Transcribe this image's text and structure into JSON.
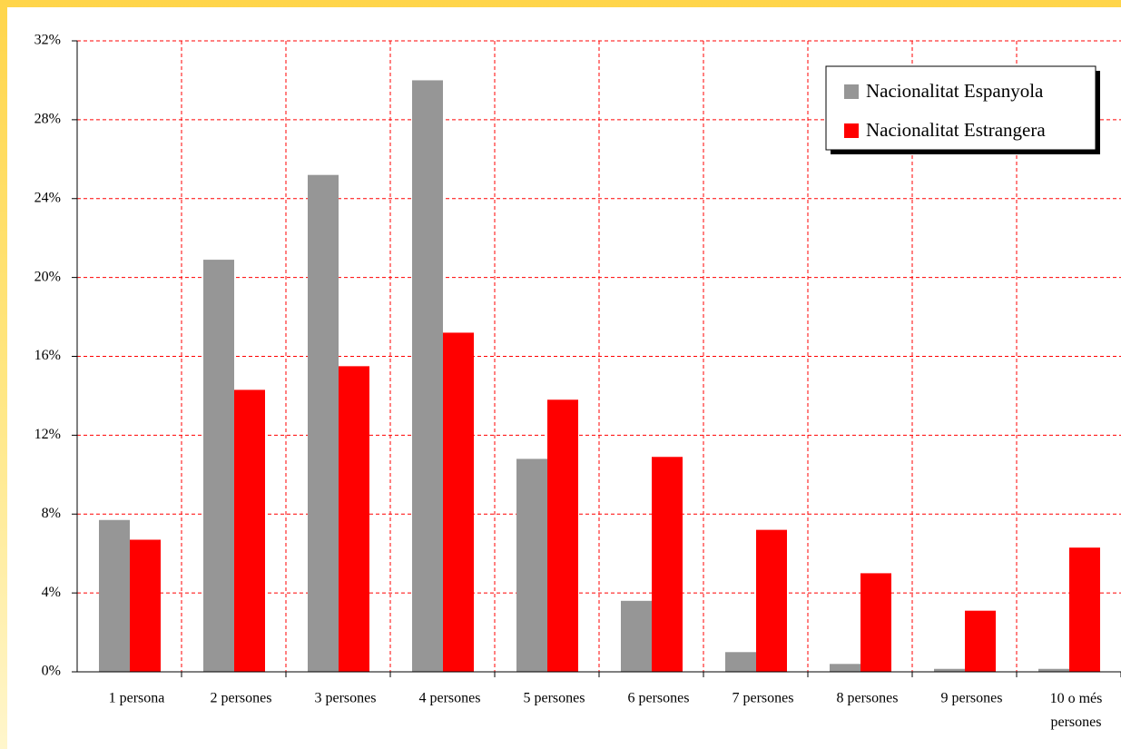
{
  "chart_data": {
    "type": "bar",
    "categories": [
      "1 persona",
      "2 persones",
      "3 persones",
      "4 persones",
      "5 persones",
      "6 persones",
      "7 persones",
      "8 persones",
      "9 persones",
      "10 o més persones"
    ],
    "series": [
      {
        "name": "Nacionalitat Espanyola",
        "color": "#969696",
        "values": [
          7.7,
          20.9,
          25.2,
          30.0,
          10.8,
          3.6,
          1.0,
          0.4,
          0.15,
          0.15
        ]
      },
      {
        "name": "Nacionalitat Estrangera",
        "color": "#ff0000",
        "values": [
          6.7,
          14.3,
          15.5,
          17.2,
          13.8,
          10.9,
          7.2,
          5.0,
          3.1,
          6.3
        ]
      }
    ],
    "ylim": [
      0,
      32
    ],
    "yticks": [
      {
        "value": 0,
        "label": "0%"
      },
      {
        "value": 4,
        "label": "4%"
      },
      {
        "value": 8,
        "label": "8%"
      },
      {
        "value": 12,
        "label": "12%"
      },
      {
        "value": 16,
        "label": "16%"
      },
      {
        "value": 20,
        "label": "20%"
      },
      {
        "value": 24,
        "label": "24%"
      },
      {
        "value": 28,
        "label": "28%"
      },
      {
        "value": 32,
        "label": "32%"
      }
    ],
    "grid": true,
    "legend": "top-right"
  }
}
